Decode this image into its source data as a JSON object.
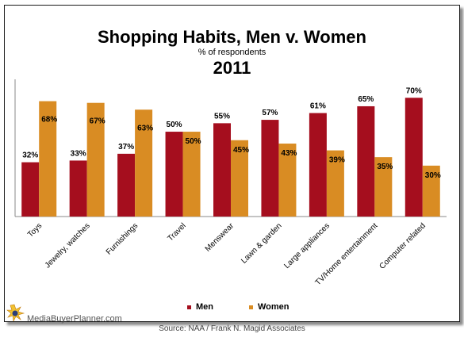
{
  "header": {
    "title": "Shopping Habits, Men v. Women",
    "subtitle": "% of respondents",
    "year": "2011"
  },
  "footer": {
    "source": "Source: NAA / Frank N. Magid Associates",
    "logo_text": "MediaBuyerPlanner.com"
  },
  "colors": {
    "men": "#A50E1E",
    "women": "#D98C23"
  },
  "chart_data": {
    "type": "bar",
    "title": "Shopping Habits, Men v. Women",
    "subtitle": "% of respondents",
    "categories": [
      "Toys",
      "Jewelry, watches",
      "Furnishings",
      "Travel",
      "Menswear",
      "Lawn & garden",
      "Large appliances",
      "TV/Home entertainment",
      "Computer related"
    ],
    "series": [
      {
        "name": "Men",
        "values": [
          32,
          33,
          37,
          50,
          55,
          57,
          61,
          65,
          70
        ],
        "labels": [
          "32%",
          "33%",
          "37%",
          "50%",
          "55%",
          "57%",
          "61%",
          "65%",
          "70%"
        ]
      },
      {
        "name": "Women",
        "values": [
          68,
          67,
          63,
          50,
          45,
          43,
          39,
          35,
          30
        ],
        "labels": [
          "68%",
          "67%",
          "63%",
          "50%",
          "45%",
          "43%",
          "39%",
          "35%",
          "30%"
        ]
      }
    ],
    "ylim": [
      0,
      72
    ],
    "grid": false,
    "legend": "bottom-center"
  }
}
